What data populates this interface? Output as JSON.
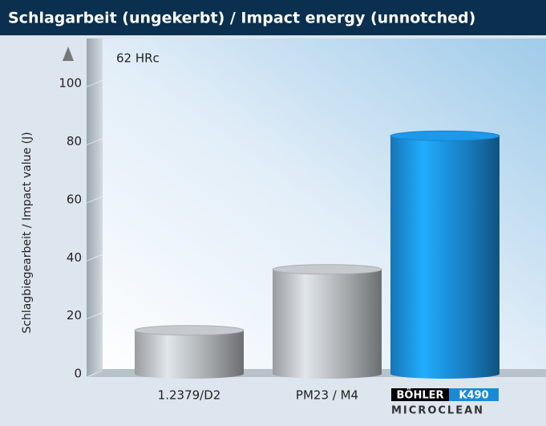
{
  "chart_data": {
    "type": "bar",
    "title": "Schlagarbeit (ungekerbt) / Impact energy (unnotched)",
    "annotation": "62 HRc",
    "y_label": "Schlagbiegearbeit / Impact value (J)",
    "categories": [
      "1.2379/D2",
      "PM23 / M4",
      null
    ],
    "logo": {
      "brand": "BÖHLER",
      "grade": "K490",
      "line": "MICROCLEAN"
    },
    "values": [
      15,
      36,
      82
    ],
    "colors": [
      "#b4b8bc",
      "#b4b8bc",
      "#1a8ad6"
    ],
    "ylim": [
      0,
      110
    ],
    "yticks": [
      0,
      20,
      40,
      60,
      80,
      100
    ],
    "grid": true
  }
}
